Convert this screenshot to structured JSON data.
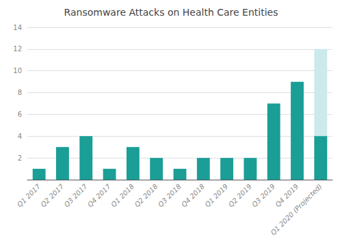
{
  "chart_data": {
    "type": "bar",
    "title": "Ransomware Attacks on Health Care Entities",
    "categories": [
      "Q1 2017",
      "Q2 2017",
      "Q3 2017",
      "Q4 2017",
      "Q1 2018",
      "Q2 2018",
      "Q3 2018",
      "Q4 2018",
      "Q1 2019",
      "Q2 2019",
      "Q3 2019",
      "Q4 2019",
      "Q1 2020 (Projected)"
    ],
    "values": [
      1,
      3,
      4,
      1,
      3,
      2,
      1,
      2,
      2,
      2,
      7,
      9,
      4
    ],
    "color": "#1a9e96",
    "projected_value": 12,
    "projected_color": "#cce9eb",
    "ylim": [
      0,
      14
    ],
    "yticks": [
      2,
      4,
      6,
      8,
      10,
      12,
      14
    ],
    "grid": true
  }
}
